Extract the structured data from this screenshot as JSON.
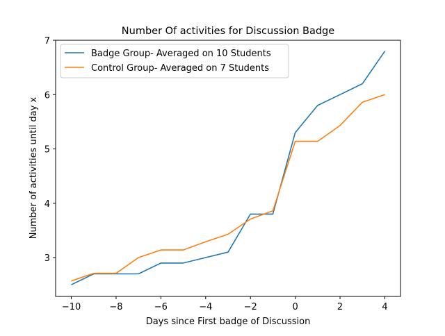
{
  "chart_data": {
    "type": "line",
    "title": "Number Of activities for Discussion Badge",
    "xlabel": "Days since First badge of Discussion",
    "ylabel": "Number of activities until day x",
    "xlim": [
      -10.7,
      4.7
    ],
    "ylim": [
      2.285,
      7.0
    ],
    "xticks": [
      -10,
      -8,
      -6,
      -4,
      -2,
      0,
      2,
      4
    ],
    "xtick_labels": [
      "−10",
      "−8",
      "−6",
      "−4",
      "−2",
      "0",
      "2",
      "4"
    ],
    "yticks": [
      3,
      4,
      5,
      6,
      7
    ],
    "ytick_labels": [
      "3",
      "4",
      "5",
      "6",
      "7"
    ],
    "grid": false,
    "legend_position": "upper-left",
    "series": [
      {
        "name": "Badge Group- Averaged on 10 Students",
        "color": "#1f77b4",
        "x": [
          -10,
          -9,
          -8,
          -7,
          -6,
          -5,
          -4,
          -3,
          -2,
          -1,
          0,
          1,
          2,
          3,
          4
        ],
        "y": [
          2.5,
          2.7,
          2.7,
          2.7,
          2.9,
          2.9,
          3.0,
          3.1,
          3.8,
          3.8,
          5.3,
          5.8,
          6.0,
          6.2,
          6.8
        ]
      },
      {
        "name": "Control Group- Averaged on 7 Students",
        "color": "#ff7f0e",
        "x": [
          -10,
          -9,
          -8,
          -7,
          -6,
          -5,
          -4,
          -3,
          -2,
          -1,
          0,
          1,
          2,
          3,
          4
        ],
        "y": [
          2.57,
          2.71,
          2.71,
          3.0,
          3.14,
          3.14,
          3.29,
          3.43,
          3.71,
          3.86,
          5.14,
          5.14,
          5.43,
          5.86,
          6.0
        ]
      }
    ]
  }
}
